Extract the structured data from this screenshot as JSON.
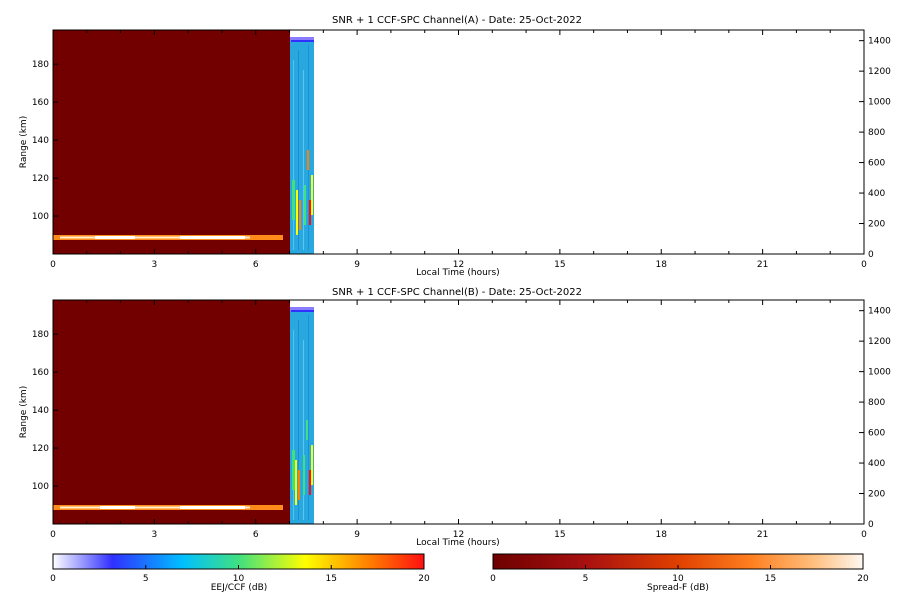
{
  "chart_data": [
    {
      "type": "heatmap",
      "title": "SNR + 1 CCF-SPC Channel(A) - Date: 25-Oct-2022",
      "xlabel": "Local Time (hours)",
      "ylabel": "Range (km)",
      "xlim": [
        0,
        24
      ],
      "ylim": [
        80,
        198
      ],
      "x_ticks": [
        "0",
        "3",
        "6",
        "9",
        "12",
        "15",
        "18",
        "21",
        "0"
      ],
      "y_ticks": [
        100,
        120,
        140,
        160,
        180
      ],
      "y2_ticks": [
        0,
        200,
        400,
        600,
        800,
        1000,
        1200,
        1400
      ],
      "y2lim": [
        0,
        1470
      ],
      "regions": [
        {
          "name": "Spread-F",
          "x_range": [
            0,
            7.0
          ],
          "level_db": 0,
          "band_range_km": [
            88,
            91
          ],
          "band_x_range": [
            0,
            6.8
          ],
          "band_level_db": 20
        },
        {
          "name": "EEJ/CCF",
          "x_range": [
            7.0,
            7.7
          ],
          "level_db": 4
        }
      ]
    },
    {
      "type": "heatmap",
      "title": "SNR + 1 CCF-SPC Channel(B) - Date: 25-Oct-2022",
      "xlabel": "Local Time (hours)",
      "ylabel": "Range (km)",
      "xlim": [
        0,
        24
      ],
      "ylim": [
        80,
        198
      ],
      "x_ticks": [
        "0",
        "3",
        "6",
        "9",
        "12",
        "15",
        "18",
        "21",
        "0"
      ],
      "y_ticks": [
        100,
        120,
        140,
        160,
        180
      ],
      "y2_ticks": [
        0,
        200,
        400,
        600,
        800,
        1000,
        1200,
        1400
      ],
      "y2lim": [
        0,
        1470
      ],
      "regions": [
        {
          "name": "Spread-F",
          "x_range": [
            0,
            7.0
          ],
          "level_db": 0,
          "band_range_km": [
            88,
            91
          ],
          "band_x_range": [
            0,
            6.8
          ],
          "band_level_db": 20
        },
        {
          "name": "EEJ/CCF",
          "x_range": [
            7.0,
            7.7
          ],
          "level_db": 4
        }
      ]
    }
  ],
  "colorbars": [
    {
      "label": "EEJ/CCF (dB)",
      "ticks": [
        "0",
        "5",
        "10",
        "15",
        "20"
      ],
      "colors": [
        "#ffffff",
        "#3030ff",
        "#00c0ff",
        "#40e080",
        "#ffff00",
        "#ff8000",
        "#ff1010"
      ]
    },
    {
      "label": "Spread-F (dB)",
      "ticks": [
        "0",
        "5",
        "10",
        "15",
        "20"
      ],
      "colors": [
        "#6e0000",
        "#a81010",
        "#e04000",
        "#ff8020",
        "#ffc080",
        "#fff8f0"
      ]
    }
  ],
  "colors": {
    "spread_f_background": "#730000",
    "band_hot": "#fff8e0",
    "band_mid": "#ff8c1a",
    "eej_base": "#29a8e0",
    "eej_top": "#8a7cff"
  }
}
